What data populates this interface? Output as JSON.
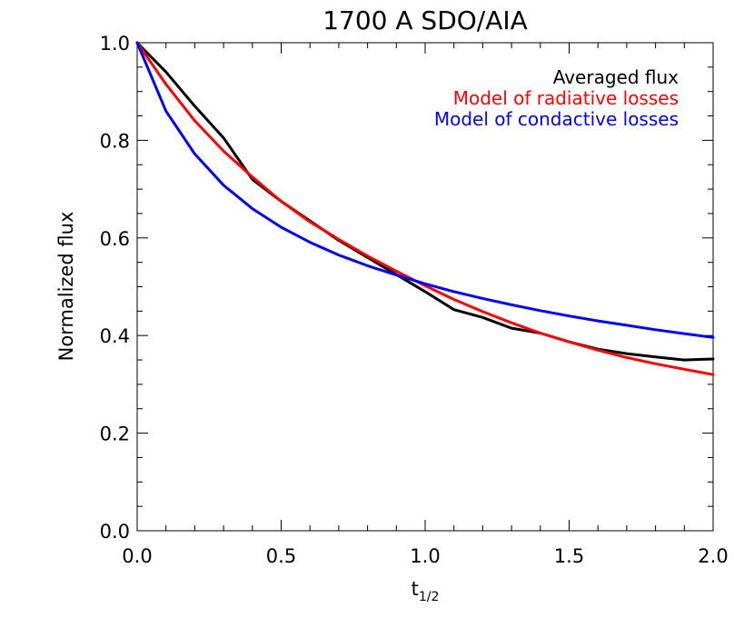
{
  "chart_data": {
    "type": "line",
    "title": "1700 A SDO/AIA",
    "ylabel": "Normalized flux",
    "xlabel": {
      "main": "t",
      "sub": "1/2"
    },
    "xlim": [
      0.0,
      2.0
    ],
    "ylim": [
      0.0,
      1.0
    ],
    "xticks": [
      0.0,
      0.5,
      1.0,
      1.5,
      2.0
    ],
    "xtick_labels": [
      "0.0",
      "0.5",
      "1.0",
      "1.5",
      "2.0"
    ],
    "yticks": [
      0.0,
      0.2,
      0.4,
      0.6,
      0.8,
      1.0
    ],
    "ytick_labels": [
      "0.0",
      "0.2",
      "0.4",
      "0.6",
      "0.8",
      "1.0"
    ],
    "grid": false,
    "legend_position": "top-right",
    "series": [
      {
        "name": "Averaged flux",
        "color": "#000000",
        "x": [
          0.0,
          0.1,
          0.2,
          0.3,
          0.4,
          0.5,
          0.6,
          0.7,
          0.8,
          0.9,
          1.0,
          1.1,
          1.2,
          1.3,
          1.4,
          1.5,
          1.6,
          1.7,
          1.8,
          1.9,
          2.0
        ],
        "y": [
          1.0,
          0.94,
          0.87,
          0.805,
          0.72,
          0.675,
          0.635,
          0.595,
          0.56,
          0.525,
          0.49,
          0.453,
          0.437,
          0.415,
          0.405,
          0.387,
          0.372,
          0.363,
          0.356,
          0.35,
          0.352
        ]
      },
      {
        "name": "Model of radiative losses",
        "color": "#ff0000",
        "x": [
          0.0,
          0.1,
          0.2,
          0.3,
          0.4,
          0.5,
          0.6,
          0.7,
          0.8,
          0.9,
          1.0,
          1.1,
          1.2,
          1.3,
          1.4,
          1.5,
          1.6,
          1.7,
          1.8,
          1.9,
          2.0
        ],
        "y": [
          1.0,
          0.915,
          0.84,
          0.778,
          0.725,
          0.675,
          0.633,
          0.597,
          0.563,
          0.532,
          0.502,
          0.474,
          0.449,
          0.426,
          0.405,
          0.387,
          0.37,
          0.355,
          0.342,
          0.331,
          0.32
        ]
      },
      {
        "name": "Model of condactive losses",
        "color": "#0000ff",
        "x": [
          0.0,
          0.1,
          0.2,
          0.3,
          0.4,
          0.5,
          0.6,
          0.7,
          0.8,
          0.9,
          1.0,
          1.1,
          1.2,
          1.3,
          1.4,
          1.5,
          1.6,
          1.7,
          1.8,
          1.9,
          2.0
        ],
        "y": [
          1.0,
          0.86,
          0.772,
          0.708,
          0.66,
          0.622,
          0.591,
          0.565,
          0.543,
          0.524,
          0.506,
          0.49,
          0.476,
          0.463,
          0.451,
          0.44,
          0.43,
          0.421,
          0.412,
          0.404,
          0.396
        ]
      }
    ]
  }
}
